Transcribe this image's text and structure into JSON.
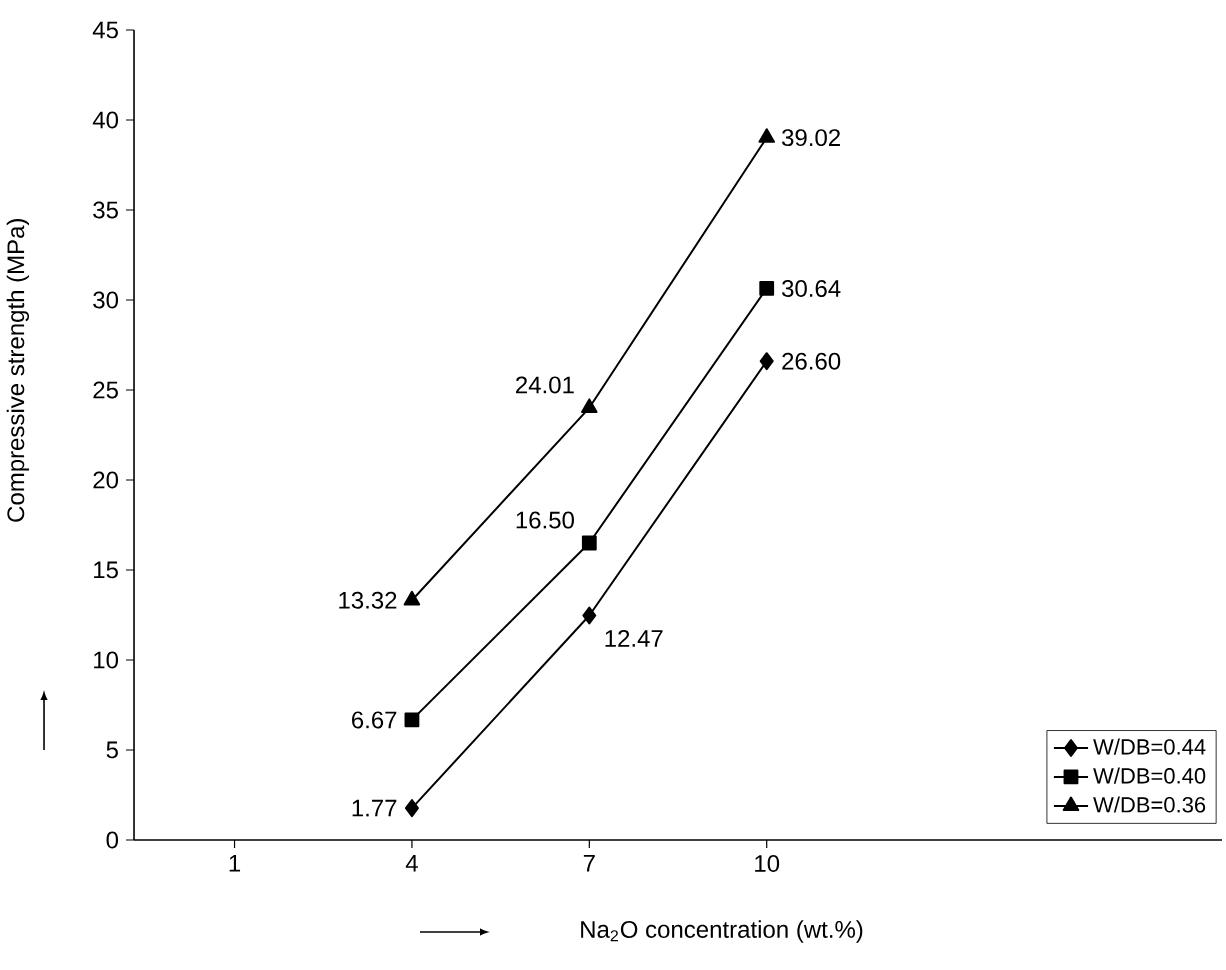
{
  "chart_data": {
    "type": "line",
    "xlabel": "Na$_{2}$O concentration (wt.%)",
    "ylabel": "Compressive strength (MPa)",
    "x": [
      4,
      7,
      10
    ],
    "xlim": [
      -0.7,
      17.7
    ],
    "xticks": [
      1,
      4,
      7,
      10
    ],
    "ylim": [
      0,
      45
    ],
    "yticks": [
      0,
      5,
      10,
      15,
      20,
      25,
      30,
      35,
      40,
      45
    ],
    "grid": false,
    "legend": "bottom right",
    "line_style": "solid",
    "series": [
      {
        "name": "W/DB=0.44",
        "color": "#000000",
        "marker": "diamond",
        "values": [
          1.77,
          12.47,
          26.6
        ],
        "value_labels": [
          "1.77",
          "12.47",
          "26.60"
        ]
      },
      {
        "name": "W/DB=0.40",
        "color": "#000000",
        "marker": "square",
        "values": [
          6.67,
          16.5,
          30.64
        ],
        "value_labels": [
          "6.67",
          "16.50",
          "30.64"
        ]
      },
      {
        "name": "W/DB=0.36",
        "color": "#000000",
        "marker": "triangle",
        "values": [
          13.32,
          24.01,
          39.02
        ],
        "value_labels": [
          "13.32",
          "24.01",
          "39.02"
        ]
      }
    ]
  }
}
